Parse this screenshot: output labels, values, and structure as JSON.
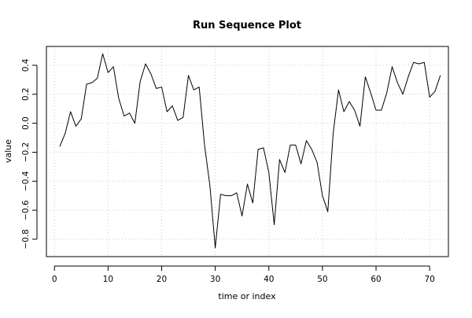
{
  "chart_data": {
    "type": "line",
    "title": "Run Sequence Plot",
    "xlabel": "time or index",
    "ylabel": "value",
    "xlim": [
      -1.5,
      73.5
    ],
    "ylim": [
      -0.92,
      0.53
    ],
    "x_ticks": [
      0,
      10,
      20,
      30,
      40,
      50,
      60,
      70
    ],
    "y_ticks": [
      -0.8,
      -0.6,
      -0.4,
      -0.2,
      0.0,
      0.2,
      0.4
    ],
    "x_tick_labels": [
      "0",
      "10",
      "20",
      "30",
      "40",
      "50",
      "60",
      "70"
    ],
    "y_tick_labels": [
      "−0.8",
      "−0.6",
      "−0.4",
      "−0.2",
      "0.0",
      "0.2",
      "0.4"
    ],
    "grid": true,
    "line_color": "#000000",
    "grid_color": "#cccccc",
    "x": [
      1,
      2,
      3,
      4,
      5,
      6,
      7,
      8,
      9,
      10,
      11,
      12,
      13,
      14,
      15,
      16,
      17,
      18,
      19,
      20,
      21,
      22,
      23,
      24,
      25,
      26,
      27,
      28,
      29,
      30,
      31,
      32,
      33,
      34,
      35,
      36,
      37,
      38,
      39,
      40,
      41,
      42,
      43,
      44,
      45,
      46,
      47,
      48,
      49,
      50,
      51,
      52,
      53,
      54,
      55,
      56,
      57,
      58,
      59,
      60,
      61,
      62,
      63,
      64,
      65,
      66,
      67,
      68,
      69,
      70,
      71,
      72
    ],
    "y": [
      -0.16,
      -0.07,
      0.08,
      -0.02,
      0.03,
      0.27,
      0.28,
      0.31,
      0.48,
      0.35,
      0.39,
      0.17,
      0.05,
      0.07,
      0.0,
      0.29,
      0.41,
      0.34,
      0.24,
      0.25,
      0.08,
      0.12,
      0.02,
      0.04,
      0.33,
      0.23,
      0.25,
      -0.15,
      -0.43,
      -0.86,
      -0.49,
      -0.5,
      -0.5,
      -0.48,
      -0.64,
      -0.42,
      -0.55,
      -0.18,
      -0.17,
      -0.34,
      -0.7,
      -0.25,
      -0.34,
      -0.15,
      -0.15,
      -0.28,
      -0.12,
      -0.18,
      -0.27,
      -0.5,
      -0.61,
      -0.07,
      0.23,
      0.08,
      0.15,
      0.09,
      -0.02,
      0.32,
      0.21,
      0.09,
      0.09,
      0.21,
      0.39,
      0.28,
      0.2,
      0.32,
      0.42,
      0.41,
      0.42,
      0.18,
      0.22,
      0.33
    ]
  }
}
